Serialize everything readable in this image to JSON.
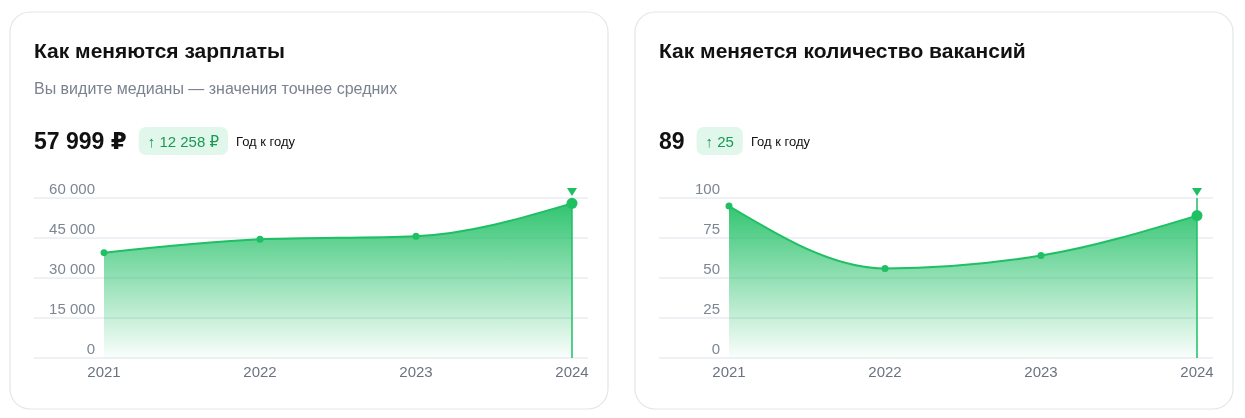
{
  "chart_data": [
    {
      "type": "area",
      "title": "Как меняются зарплаты",
      "subtitle": "Вы видите медианы — значения точнее средних",
      "annotations": [
        "57 999 ₽",
        "↑ 12 258 ₽",
        "Год к году"
      ],
      "categories": [
        "2021",
        "2022",
        "2023",
        "2024"
      ],
      "values": [
        39500,
        44500,
        45700,
        57999
      ],
      "color": "#1fbf64",
      "ylim": [
        0,
        60000
      ],
      "yticks": [
        {
          "value": 0,
          "label": "0"
        },
        {
          "value": 15000,
          "label": "15 000"
        },
        {
          "value": 30000,
          "label": "30 000"
        },
        {
          "value": 45000,
          "label": "45 000"
        },
        {
          "value": 60000,
          "label": "60 000"
        }
      ],
      "grid": "y",
      "marker": "circle",
      "ref_lines": [
        {
          "axis": "x",
          "value": "2024"
        }
      ]
    },
    {
      "type": "area",
      "title": "Как меняется количество вакансий",
      "annotations": [
        "89",
        "↑ 25",
        "Год к году"
      ],
      "categories": [
        "2021",
        "2022",
        "2023",
        "2024"
      ],
      "values": [
        95,
        56,
        64,
        89
      ],
      "color": "#1fbf64",
      "ylim": [
        0,
        100
      ],
      "yticks": [
        0,
        25,
        50,
        75,
        100
      ],
      "grid": "y",
      "marker": "circle",
      "ref_lines": [
        {
          "axis": "x",
          "value": "2024"
        }
      ]
    }
  ]
}
